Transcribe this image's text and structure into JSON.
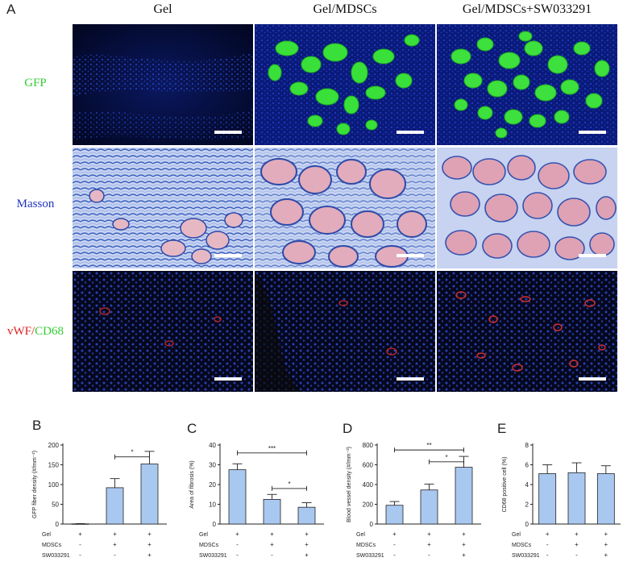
{
  "figure": {
    "panel_a_letter": "A",
    "columns": [
      "Gel",
      "Gel/MDSCs",
      "Gel/MDSCs+SW033291"
    ],
    "rows": [
      {
        "parts": [
          {
            "text": "GFP",
            "color": "#33cc33"
          }
        ]
      },
      {
        "parts": [
          {
            "text": "Masson",
            "color": "#2233bb"
          }
        ]
      },
      {
        "parts": [
          {
            "text": "vWF",
            "color": "#dd2222"
          },
          {
            "text": "/",
            "color": "#dd2222"
          },
          {
            "text": "CD68",
            "color": "#33cc33"
          }
        ]
      }
    ]
  },
  "colors": {
    "bar_fill": "#a9c8f0",
    "bar_stroke": "#222222",
    "gfp_green": "#33cc33",
    "masson_blue": "#2233bb",
    "vwf_red": "#dd2222"
  },
  "chart_data": [
    {
      "panel": "B",
      "type": "bar",
      "ylabel": "GFP fiber density (#/mm⁻²)",
      "ylim": [
        0,
        200
      ],
      "yticks": [
        0,
        50,
        100,
        150,
        200
      ],
      "categories": [
        "Gel",
        "Gel/MDSCs",
        "Gel/MDSCs+SW033291"
      ],
      "values": [
        0.5,
        92,
        152
      ],
      "errors": [
        0.5,
        23,
        32
      ],
      "conditions": {
        "labels": [
          "Gel",
          "MDSCs",
          "SW033291"
        ],
        "signs": [
          [
            "+",
            "+",
            "+"
          ],
          [
            "-",
            "+",
            "+"
          ],
          [
            "-",
            "-",
            "+"
          ]
        ]
      },
      "significance": [
        {
          "from": 1,
          "to": 2,
          "label": "*",
          "level": 170
        }
      ]
    },
    {
      "panel": "C",
      "type": "bar",
      "ylabel": "Area of fibrosis (%)",
      "ylim": [
        0,
        40
      ],
      "yticks": [
        0,
        10,
        20,
        30,
        40
      ],
      "categories": [
        "Gel",
        "Gel/MDSCs",
        "Gel/MDSCs+SW033291"
      ],
      "values": [
        27.5,
        12.5,
        8.5
      ],
      "errors": [
        3,
        2.5,
        2.3
      ],
      "conditions": {
        "labels": [
          "Gel",
          "MDSCs",
          "SW033291"
        ],
        "signs": [
          [
            "+",
            "+",
            "+"
          ],
          [
            "-",
            "+",
            "+"
          ],
          [
            "-",
            "-",
            "+"
          ]
        ]
      },
      "significance": [
        {
          "from": 0,
          "to": 2,
          "label": "***",
          "level": 36
        },
        {
          "from": 1,
          "to": 2,
          "label": "*",
          "level": 18
        }
      ]
    },
    {
      "panel": "D",
      "type": "bar",
      "ylabel": "Blood vessel density (#/mm⁻²)",
      "ylim": [
        0,
        800
      ],
      "yticks": [
        0,
        200,
        400,
        600,
        800
      ],
      "categories": [
        "Gel",
        "Gel/MDSCs",
        "Gel/MDSCs+SW033291"
      ],
      "values": [
        190,
        345,
        575
      ],
      "errors": [
        38,
        60,
        110
      ],
      "conditions": {
        "labels": [
          "Gel",
          "MDSCs",
          "SW033291"
        ],
        "signs": [
          [
            "+",
            "+",
            "+"
          ],
          [
            "-",
            "+",
            "+"
          ],
          [
            "-",
            "-",
            "+"
          ]
        ]
      },
      "significance": [
        {
          "from": 0,
          "to": 2,
          "label": "**",
          "level": 750
        },
        {
          "from": 1,
          "to": 2,
          "label": "*",
          "level": 630
        }
      ]
    },
    {
      "panel": "E",
      "type": "bar",
      "ylabel": "CD68 positive cell (%)",
      "ylim": [
        0,
        8
      ],
      "yticks": [
        0,
        2,
        4,
        6,
        8
      ],
      "categories": [
        "Gel",
        "Gel/MDSCs",
        "Gel/MDSCs+SW033291"
      ],
      "values": [
        5.1,
        5.2,
        5.1
      ],
      "errors": [
        0.9,
        1.0,
        0.8
      ],
      "conditions": {
        "labels": [
          "Gel",
          "MDSCs",
          "SW033291"
        ],
        "signs": [
          [
            "+",
            "+",
            "+"
          ],
          [
            "-",
            "+",
            "+"
          ],
          [
            "-",
            "-",
            "+"
          ]
        ]
      },
      "significance": []
    }
  ]
}
